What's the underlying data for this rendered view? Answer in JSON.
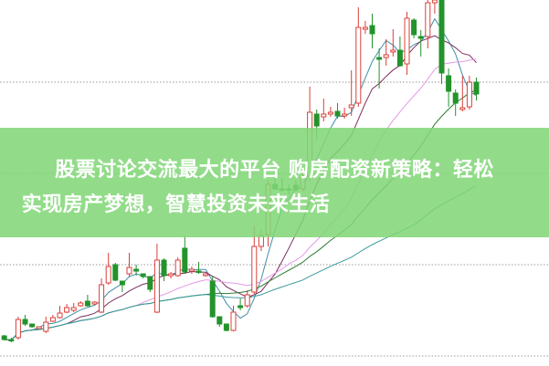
{
  "headline": {
    "line1": "股票讨论交流最大的平台 购房配资新策略：轻松",
    "line2": "实现房产梦想，智慧投资未来生活"
  },
  "colors": {
    "up": "#d9403a",
    "down": "#23932b",
    "banner": "#80d676",
    "grid": "#9a9a9a",
    "ma_lines": [
      "#3f8fa8",
      "#7a2f5e",
      "#e49ae6",
      "#2f7d34",
      "#3a9aa0"
    ]
  },
  "chart_data": {
    "type": "candlestick",
    "grid": "horizontal dashed",
    "moving_averages": [
      5,
      10,
      20,
      30,
      60
    ],
    "ohlc_fields": [
      "open",
      "close",
      "high",
      "low"
    ],
    "candles": [
      [
        32,
        28,
        33,
        27
      ],
      [
        28,
        27,
        30,
        25
      ],
      [
        30,
        50,
        53,
        28
      ],
      [
        50,
        45,
        55,
        43
      ],
      [
        45,
        42,
        45,
        41
      ],
      [
        40,
        42,
        42,
        40
      ],
      [
        37,
        47,
        53,
        35
      ],
      [
        48,
        52,
        55,
        47
      ],
      [
        52,
        57,
        65,
        51
      ],
      [
        58,
        63,
        67,
        57
      ],
      [
        60,
        63,
        68,
        58
      ],
      [
        65,
        68,
        70,
        64
      ],
      [
        70,
        65,
        77,
        64
      ],
      [
        67,
        69,
        70,
        66
      ],
      [
        58,
        88,
        95,
        57
      ],
      [
        90,
        108,
        123,
        88
      ],
      [
        110,
        93,
        112,
        92
      ],
      [
        92,
        88,
        92,
        80
      ],
      [
        100,
        107,
        123,
        97
      ],
      [
        105,
        103,
        110,
        98
      ],
      [
        100,
        97,
        100,
        95
      ],
      [
        97,
        83,
        97,
        80
      ],
      [
        58,
        115,
        133,
        57
      ],
      [
        115,
        98,
        117,
        92
      ],
      [
        98,
        100,
        102,
        95
      ],
      [
        98,
        115,
        118,
        97
      ],
      [
        128,
        102,
        142,
        100
      ],
      [
        103,
        105,
        108,
        100
      ],
      [
        103,
        102,
        113,
        100
      ],
      [
        98,
        100,
        100,
        97
      ],
      [
        92,
        53,
        97,
        52
      ],
      [
        53,
        45,
        53,
        42
      ],
      [
        45,
        38,
        45,
        37
      ],
      [
        38,
        58,
        65,
        37
      ],
      [
        65,
        63,
        73,
        60
      ],
      [
        65,
        77,
        82,
        63
      ],
      [
        80,
        130,
        153,
        78
      ],
      [
        130,
        142,
        148,
        125
      ],
      [
        143,
        198,
        203,
        130
      ],
      [
        198,
        193,
        207,
        192
      ],
      [
        193,
        192,
        205,
        190
      ],
      [
        193,
        192,
        198,
        187
      ],
      [
        197,
        192,
        203,
        190
      ],
      [
        193,
        207,
        213,
        190
      ],
      [
        207,
        277,
        305,
        202
      ],
      [
        275,
        262,
        280,
        247
      ],
      [
        272,
        275,
        292,
        267
      ],
      [
        275,
        277,
        283,
        272
      ],
      [
        278,
        273,
        287,
        270
      ],
      [
        273,
        275,
        282,
        270
      ],
      [
        282,
        285,
        323,
        273
      ],
      [
        287,
        370,
        392,
        283
      ],
      [
        368,
        370,
        377,
        363
      ],
      [
        372,
        363,
        385,
        347
      ],
      [
        337,
        335,
        347,
        303
      ],
      [
        337,
        340,
        357,
        328
      ],
      [
        343,
        345,
        368,
        338
      ],
      [
        345,
        328,
        360,
        327
      ],
      [
        330,
        380,
        387,
        318
      ],
      [
        378,
        362,
        380,
        358
      ],
      [
        360,
        358,
        367,
        338
      ],
      [
        360,
        397,
        400,
        347
      ],
      [
        397,
        400,
        400,
        385
      ],
      [
        400,
        320,
        400,
        308
      ],
      [
        317,
        300,
        325,
        283
      ],
      [
        298,
        287,
        302,
        273
      ],
      [
        280,
        282,
        317,
        278
      ],
      [
        283,
        310,
        317,
        280
      ],
      [
        310,
        297,
        315,
        290
      ]
    ]
  }
}
